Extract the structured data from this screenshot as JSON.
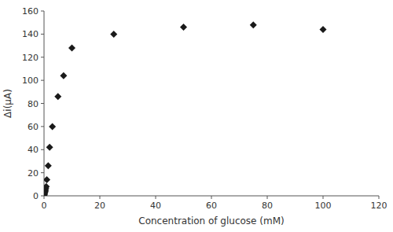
{
  "chart_data": {
    "type": "scatter",
    "x": [
      0.0,
      0.1,
      0.2,
      0.3,
      0.4,
      0.5,
      0.6,
      0.8,
      1.0,
      1.5,
      2.0,
      3.0,
      5.0,
      7.0,
      10.0,
      25.0,
      50.0,
      75.0,
      100.0
    ],
    "values": [
      0.5,
      1.0,
      2.0,
      3.0,
      4.0,
      5.0,
      6.5,
      8.0,
      14.0,
      26.0,
      42.0,
      60.0,
      86.0,
      104.0,
      128.0,
      140.0,
      146.0,
      148.0,
      144.0
    ],
    "xlabel": "Concentration of glucose (mM)",
    "ylabel": "Δi(μA)",
    "xlim": [
      0,
      120
    ],
    "ylim": [
      0,
      160
    ],
    "xticks": [
      0,
      20,
      40,
      60,
      80,
      100,
      120
    ],
    "yticks": [
      0,
      20,
      40,
      60,
      80,
      100,
      120,
      140,
      160
    ],
    "color": "#1a1a1a",
    "marker": "diamond",
    "grid": false
  }
}
